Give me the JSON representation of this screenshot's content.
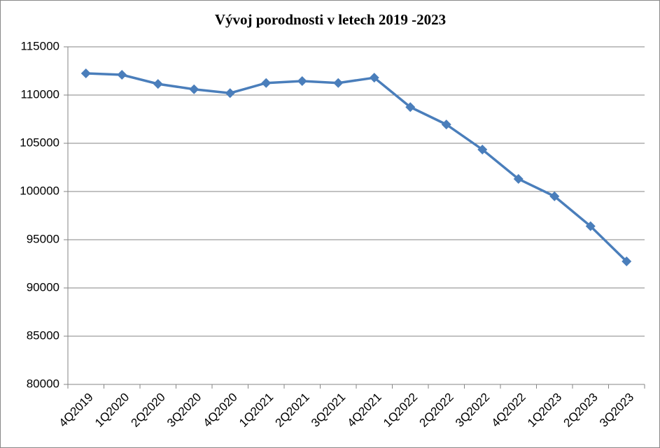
{
  "chart_data": {
    "type": "line",
    "title": "Vývoj porodnosti v letech 2019 -2023",
    "categories": [
      "4Q2019",
      "1Q2020",
      "2Q2020",
      "3Q2020",
      "4Q2020",
      "1Q2021",
      "2Q2021",
      "3Q2021",
      "4Q2021",
      "1Q2022",
      "2Q2022",
      "3Q2022",
      "4Q2022",
      "1Q2023",
      "2Q2023",
      "3Q2023"
    ],
    "values": [
      112250,
      112100,
      111150,
      110600,
      110200,
      111250,
      111450,
      111250,
      111800,
      108750,
      106950,
      104350,
      101300,
      99500,
      96400,
      92750
    ],
    "color": "#4a7ebb",
    "ylim": [
      80000,
      115000
    ],
    "yticks": [
      80000,
      85000,
      90000,
      95000,
      100000,
      105000,
      110000,
      115000
    ],
    "grid": true
  }
}
